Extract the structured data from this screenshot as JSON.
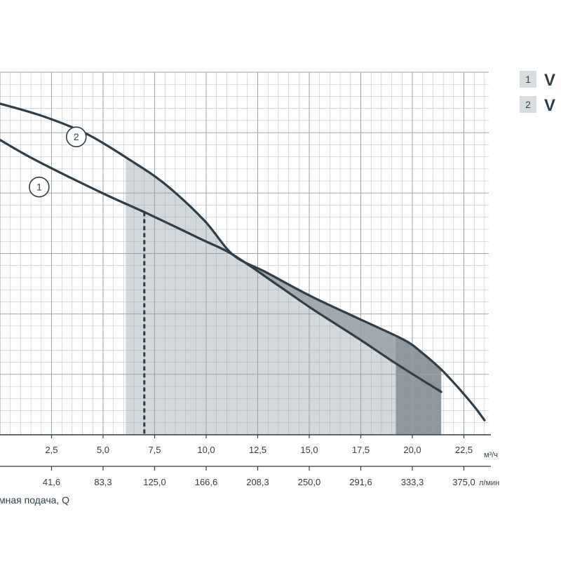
{
  "chart_data": {
    "type": "line",
    "title": "",
    "xlabel": "мная подача, Q",
    "x_unit_primary": "м³/ч",
    "x_unit_secondary": "л/мин",
    "xlim": [
      0,
      23.5
    ],
    "x_ticks_primary": [
      "2,5",
      "5,0",
      "7,5",
      "10,0",
      "12,5",
      "15,0",
      "17,5",
      "20,0",
      "22,5"
    ],
    "x_ticks_primary_values": [
      2.5,
      5,
      7.5,
      10,
      12.5,
      15,
      17.5,
      20,
      22.5
    ],
    "x_ticks_secondary": [
      "41,6",
      "83,3",
      "125,0",
      "166,6",
      "208,3",
      "250,0",
      "291,6",
      "333,3",
      "375,0"
    ],
    "ylabel": "",
    "y_major_lines": 6,
    "grid": true,
    "legend": {
      "placement": "top-right",
      "items": [
        {
          "num": "1",
          "label": "V"
        },
        {
          "num": "2",
          "label": "V"
        }
      ]
    },
    "series": [
      {
        "label_marker": "1",
        "x": [
          0,
          1.7,
          4.9,
          7.1,
          9.8,
          11.3,
          13.5,
          15.2,
          17.4,
          19.2,
          21.4
        ],
        "y": [
          4.88,
          4.55,
          4.01,
          3.67,
          3.23,
          2.98,
          2.47,
          2.07,
          1.59,
          1.18,
          0.71
        ]
      },
      {
        "label_marker": "2",
        "x": [
          0,
          2.1,
          4.2,
          6.2,
          8.0,
          9.9,
          11.3,
          12.9,
          15.1,
          17.6,
          19.6,
          20.5,
          21.4,
          22.2,
          23.0,
          23.5
        ],
        "y": [
          5.48,
          5.27,
          4.98,
          4.57,
          4.15,
          3.55,
          2.98,
          2.69,
          2.29,
          1.89,
          1.57,
          1.35,
          1.08,
          0.79,
          0.47,
          0.24
        ]
      }
    ],
    "operating_point": {
      "x": 7.0
    },
    "working_range": {
      "x": [
        6.1,
        21.4
      ]
    },
    "shaded_band": {
      "x": [
        19.2,
        21.4
      ]
    },
    "colors": {
      "curve": "#2e3e48",
      "grid": "#9ba3a8",
      "axis": "#2e3e48",
      "light_fill": "#d2d8dc",
      "mid_fill": "#a2aab0",
      "dark_fill": "#8e979e",
      "legend_box": "#d8dde0"
    }
  }
}
